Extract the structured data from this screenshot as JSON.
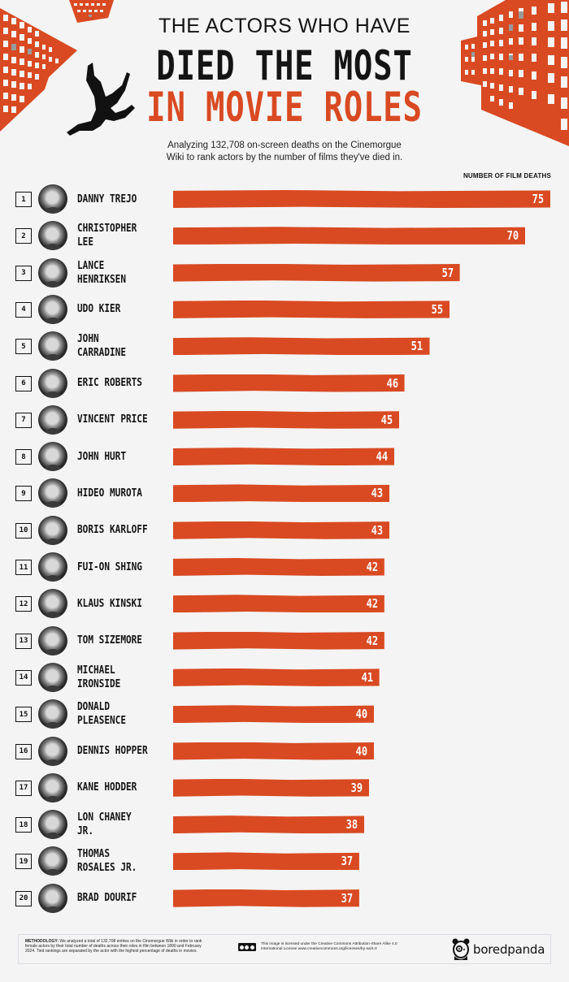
{
  "header": {
    "title_line1": "THE ACTORS WHO HAVE",
    "title_line2": "DIED THE MOST",
    "title_line3": "IN MOVIE ROLES",
    "subtitle_line1": "Analyzing 132,708 on-screen deaths on the Cinemorgue",
    "subtitle_line2": "Wiki to rank actors by the number of films they've died in."
  },
  "axis_label": "NUMBER OF FILM DEATHS",
  "colors": {
    "accent": "#d94a22",
    "text": "#141414",
    "background": "#f4f4f4",
    "bar_value": "#ffffff"
  },
  "rows": [
    {
      "rank": "1",
      "name": "DANNY TREJO",
      "value": "75"
    },
    {
      "rank": "2",
      "name": "CHRISTOPHER\nLEE",
      "value": "70"
    },
    {
      "rank": "3",
      "name": "LANCE\nHENRIKSEN",
      "value": "57"
    },
    {
      "rank": "4",
      "name": "UDO KIER",
      "value": "55"
    },
    {
      "rank": "5",
      "name": "JOHN\nCARRADINE",
      "value": "51"
    },
    {
      "rank": "6",
      "name": "ERIC ROBERTS",
      "value": "46"
    },
    {
      "rank": "7",
      "name": "VINCENT PRICE",
      "value": "45"
    },
    {
      "rank": "8",
      "name": "JOHN HURT",
      "value": "44"
    },
    {
      "rank": "9",
      "name": "HIDEO MUROTA",
      "value": "43"
    },
    {
      "rank": "10",
      "name": "BORIS KARLOFF",
      "value": "43"
    },
    {
      "rank": "11",
      "name": "FUI-ON SHING",
      "value": "42"
    },
    {
      "rank": "12",
      "name": "KLAUS KINSKI",
      "value": "42"
    },
    {
      "rank": "13",
      "name": "TOM SIZEMORE",
      "value": "42"
    },
    {
      "rank": "14",
      "name": "MICHAEL\nIRONSIDE",
      "value": "41"
    },
    {
      "rank": "15",
      "name": "DONALD\nPLEASENCE",
      "value": "40"
    },
    {
      "rank": "16",
      "name": "DENNIS HOPPER",
      "value": "40"
    },
    {
      "rank": "17",
      "name": "KANE HODDER",
      "value": "39"
    },
    {
      "rank": "18",
      "name": "LON CHANEY JR.",
      "value": "38"
    },
    {
      "rank": "19",
      "name": "THOMAS\nROSALES JR.",
      "value": "37"
    },
    {
      "rank": "20",
      "name": "BRAD DOURIF",
      "value": "37"
    }
  ],
  "footer": {
    "methodology_label": "METHODOLOGY:",
    "methodology_text": " We analyzed a total of 132,708 entries on the Cinemorgue Wiki in order to rank female actors by their total number of deaths across their roles in film between 1890 and February 2024. Tied rankings are separated by the actor with the highest percentage of deaths in movies.",
    "license_text": "This image is licensed under the Creative Commons Attribution-Share Alike 4.0 International License www.creativecommons.org/licenses/by-sa/4.0",
    "brand": "boredpanda"
  },
  "chart_data": {
    "type": "bar",
    "orientation": "horizontal",
    "title": "The Actors Who Have Died the Most in Movie Roles",
    "subtitle": "Analyzing 132,708 on-screen deaths on the Cinemorgue Wiki to rank actors by the number of films they've died in.",
    "xlabel": "Number of film deaths",
    "ylabel": "",
    "categories": [
      "Danny Trejo",
      "Christopher Lee",
      "Lance Henriksen",
      "Udo Kier",
      "John Carradine",
      "Eric Roberts",
      "Vincent Price",
      "John Hurt",
      "Hideo Murota",
      "Boris Karloff",
      "Fui-On Shing",
      "Klaus Kinski",
      "Tom Sizemore",
      "Michael Ironside",
      "Donald Pleasence",
      "Dennis Hopper",
      "Kane Hodder",
      "Lon Chaney Jr.",
      "Thomas Rosales Jr.",
      "Brad Dourif"
    ],
    "values": [
      75,
      70,
      57,
      55,
      51,
      46,
      45,
      44,
      43,
      43,
      42,
      42,
      42,
      41,
      40,
      40,
      39,
      38,
      37,
      37
    ],
    "xlim": [
      0,
      75
    ],
    "grid": false,
    "legend": "none",
    "data_labels": true
  }
}
